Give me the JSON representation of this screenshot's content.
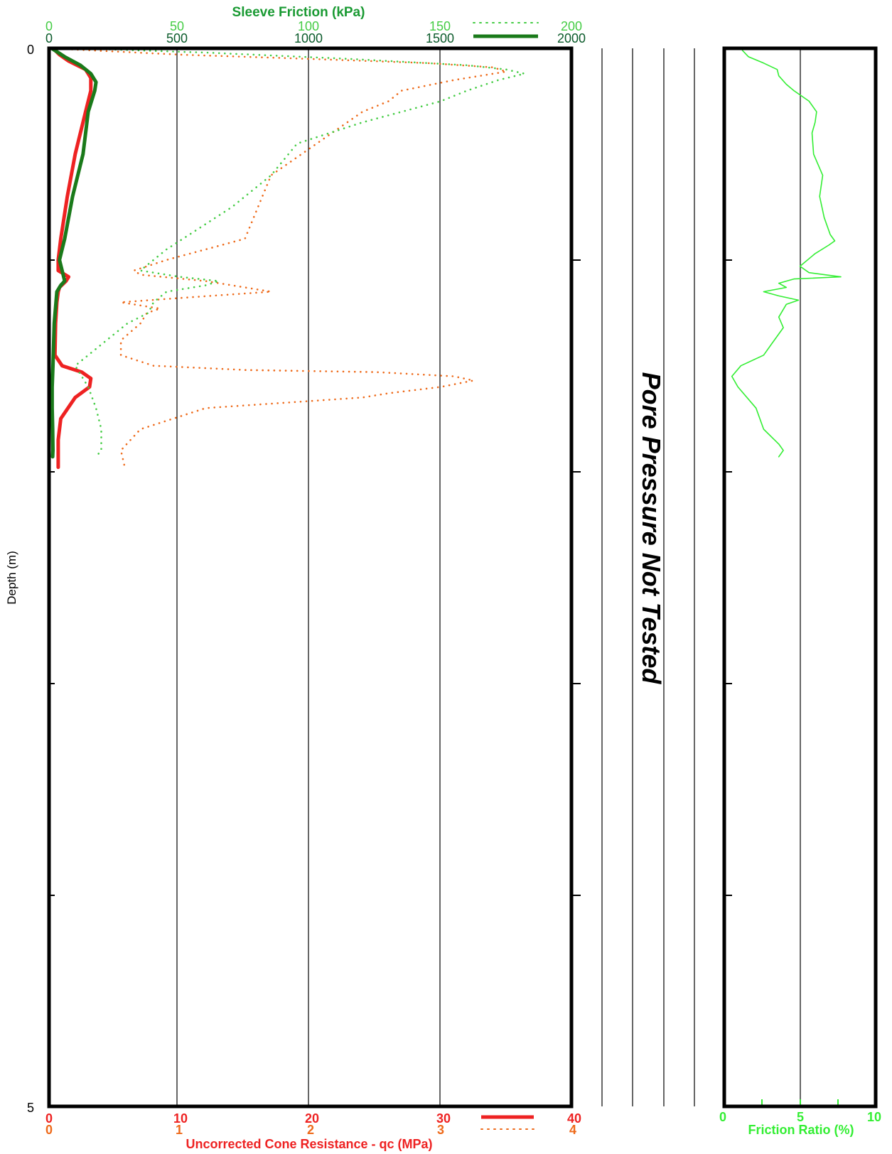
{
  "chart_data": {
    "type": "line",
    "depth_axis": {
      "label": "Depth (m)",
      "range": [
        0,
        5
      ],
      "tick_labels": [
        "0",
        "5"
      ],
      "inverted": true
    },
    "sleeve_friction": {
      "title": "Sleeve Friction (kPa)",
      "scale_fine": {
        "ticks": [
          "0",
          "50",
          "100",
          "150",
          "200"
        ],
        "range": [
          0,
          200
        ],
        "style": "dotted"
      },
      "scale_coarse": {
        "ticks": [
          "0",
          "500",
          "1000",
          "1500",
          "2000"
        ],
        "range": [
          0,
          2000
        ],
        "style": "solid"
      }
    },
    "cone_resistance": {
      "title": "Uncorrected Cone Resistance - qc (MPa)",
      "scale_coarse": {
        "ticks": [
          "0",
          "10",
          "20",
          "30",
          "40"
        ],
        "range": [
          0,
          40
        ],
        "style": "solid"
      },
      "scale_fine": {
        "ticks": [
          "0",
          "1",
          "2",
          "3",
          "4"
        ],
        "range": [
          0,
          4
        ],
        "style": "dotted"
      }
    },
    "friction_ratio": {
      "label": "Friction Ratio (%)",
      "ticks": [
        "0",
        "5",
        "10"
      ],
      "range": [
        0,
        10
      ]
    },
    "pore_pressure_note": "Pore Pressure Not Tested",
    "colors": {
      "sleeve_dark": "#1a7a1a",
      "sleeve_light": "#44cc44",
      "cone_solid": "#ee2222",
      "cone_dotted": "#ee6a1a",
      "friction_ratio": "#33ee33",
      "title_green": "#1a9a33",
      "tick_dark_green": "#0a5a2a"
    },
    "series": [
      {
        "id": "qc_fine",
        "scale": "cone_resistance.scale_fine",
        "style": "dotted",
        "points": [
          [
            0,
            0
          ],
          [
            0.03,
            1.0
          ],
          [
            0.05,
            2.0
          ],
          [
            0.07,
            2.9
          ],
          [
            0.09,
            3.4
          ],
          [
            0.11,
            3.5
          ],
          [
            0.15,
            3.1
          ],
          [
            0.2,
            2.7
          ],
          [
            0.25,
            2.6
          ],
          [
            0.3,
            2.4
          ],
          [
            0.6,
            1.7
          ],
          [
            0.9,
            1.5
          ],
          [
            1.0,
            0.9
          ],
          [
            1.05,
            0.65
          ],
          [
            1.07,
            0.7
          ],
          [
            1.1,
            1.2
          ],
          [
            1.12,
            1.4
          ],
          [
            1.14,
            1.6
          ],
          [
            1.15,
            1.7
          ],
          [
            1.18,
            1.0
          ],
          [
            1.2,
            0.55
          ],
          [
            1.23,
            0.85
          ],
          [
            1.25,
            0.75
          ],
          [
            1.3,
            0.7
          ],
          [
            1.38,
            0.55
          ],
          [
            1.45,
            0.55
          ],
          [
            1.5,
            0.8
          ],
          [
            1.52,
            1.5
          ],
          [
            1.53,
            2.5
          ],
          [
            1.55,
            3.1
          ],
          [
            1.57,
            3.25
          ],
          [
            1.6,
            3.0
          ],
          [
            1.63,
            2.6
          ],
          [
            1.65,
            2.4
          ],
          [
            1.7,
            1.2
          ],
          [
            1.8,
            0.7
          ],
          [
            1.9,
            0.55
          ],
          [
            1.98,
            0.58
          ]
        ]
      },
      {
        "id": "qc_coarse",
        "scale": "cone_resistance.scale_coarse",
        "style": "solid",
        "points": [
          [
            0,
            0.3
          ],
          [
            0.03,
            0.8
          ],
          [
            0.06,
            1.5
          ],
          [
            0.1,
            2.8
          ],
          [
            0.14,
            3.2
          ],
          [
            0.2,
            3.2
          ],
          [
            0.3,
            2.8
          ],
          [
            0.5,
            2.0
          ],
          [
            0.7,
            1.4
          ],
          [
            0.9,
            0.9
          ],
          [
            1.0,
            0.7
          ],
          [
            1.05,
            0.7
          ],
          [
            1.08,
            1.5
          ],
          [
            1.1,
            1.3
          ],
          [
            1.13,
            0.8
          ],
          [
            1.15,
            0.7
          ],
          [
            1.2,
            0.6
          ],
          [
            1.3,
            0.5
          ],
          [
            1.45,
            0.45
          ],
          [
            1.5,
            1.0
          ],
          [
            1.53,
            2.5
          ],
          [
            1.56,
            3.2
          ],
          [
            1.6,
            3.1
          ],
          [
            1.65,
            2.0
          ],
          [
            1.75,
            0.9
          ],
          [
            1.85,
            0.7
          ],
          [
            1.98,
            0.7
          ]
        ]
      },
      {
        "id": "fs_fine",
        "scale": "sleeve_friction.scale_fine",
        "style": "dotted",
        "points": [
          [
            0,
            10
          ],
          [
            0.02,
            60
          ],
          [
            0.05,
            115
          ],
          [
            0.08,
            160
          ],
          [
            0.1,
            175
          ],
          [
            0.12,
            182
          ],
          [
            0.15,
            172
          ],
          [
            0.2,
            160
          ],
          [
            0.25,
            150
          ],
          [
            0.35,
            120
          ],
          [
            0.45,
            95
          ],
          [
            0.6,
            85
          ],
          [
            0.75,
            70
          ],
          [
            0.95,
            45
          ],
          [
            1.05,
            35
          ],
          [
            1.08,
            50
          ],
          [
            1.1,
            65
          ],
          [
            1.12,
            60
          ],
          [
            1.15,
            45
          ],
          [
            1.2,
            40
          ],
          [
            1.25,
            38
          ],
          [
            1.3,
            30
          ],
          [
            1.4,
            20
          ],
          [
            1.5,
            10
          ],
          [
            1.6,
            15
          ],
          [
            1.7,
            18
          ],
          [
            1.8,
            20
          ],
          [
            1.9,
            20
          ],
          [
            1.93,
            18
          ]
        ]
      },
      {
        "id": "fs_coarse",
        "scale": "sleeve_friction.scale_coarse",
        "style": "solid",
        "points": [
          [
            0,
            10
          ],
          [
            0.04,
            60
          ],
          [
            0.08,
            120
          ],
          [
            0.12,
            160
          ],
          [
            0.16,
            180
          ],
          [
            0.2,
            175
          ],
          [
            0.3,
            150
          ],
          [
            0.5,
            130
          ],
          [
            0.7,
            90
          ],
          [
            0.9,
            60
          ],
          [
            1.0,
            40
          ],
          [
            1.05,
            50
          ],
          [
            1.1,
            60
          ],
          [
            1.12,
            45
          ],
          [
            1.15,
            30
          ],
          [
            1.3,
            20
          ],
          [
            1.5,
            15
          ],
          [
            1.6,
            12
          ],
          [
            1.7,
            12
          ],
          [
            1.8,
            14
          ],
          [
            1.9,
            15
          ],
          [
            1.93,
            14
          ]
        ]
      },
      {
        "id": "friction_ratio",
        "scale": "friction_ratio",
        "style": "solid",
        "points": [
          [
            0.01,
            1.2
          ],
          [
            0.04,
            1.6
          ],
          [
            0.07,
            2.6
          ],
          [
            0.1,
            3.5
          ],
          [
            0.13,
            3.6
          ],
          [
            0.17,
            4.1
          ],
          [
            0.2,
            4.6
          ],
          [
            0.25,
            5.6
          ],
          [
            0.3,
            6.1
          ],
          [
            0.35,
            6.0
          ],
          [
            0.4,
            5.8
          ],
          [
            0.5,
            5.9
          ],
          [
            0.6,
            6.5
          ],
          [
            0.7,
            6.3
          ],
          [
            0.8,
            6.6
          ],
          [
            0.88,
            7.0
          ],
          [
            0.91,
            7.3
          ],
          [
            0.93,
            6.9
          ],
          [
            0.97,
            6.0
          ],
          [
            1.03,
            5.0
          ],
          [
            1.06,
            5.6
          ],
          [
            1.08,
            7.7
          ],
          [
            1.09,
            4.6
          ],
          [
            1.11,
            3.6
          ],
          [
            1.13,
            4.1
          ],
          [
            1.15,
            2.6
          ],
          [
            1.17,
            3.6
          ],
          [
            1.19,
            4.9
          ],
          [
            1.21,
            4.1
          ],
          [
            1.27,
            3.6
          ],
          [
            1.32,
            3.9
          ],
          [
            1.4,
            3.1
          ],
          [
            1.45,
            2.6
          ],
          [
            1.5,
            1.1
          ],
          [
            1.55,
            0.5
          ],
          [
            1.6,
            0.9
          ],
          [
            1.7,
            2.1
          ],
          [
            1.8,
            2.6
          ],
          [
            1.87,
            3.6
          ],
          [
            1.9,
            3.9
          ],
          [
            1.93,
            3.6
          ]
        ]
      }
    ]
  }
}
